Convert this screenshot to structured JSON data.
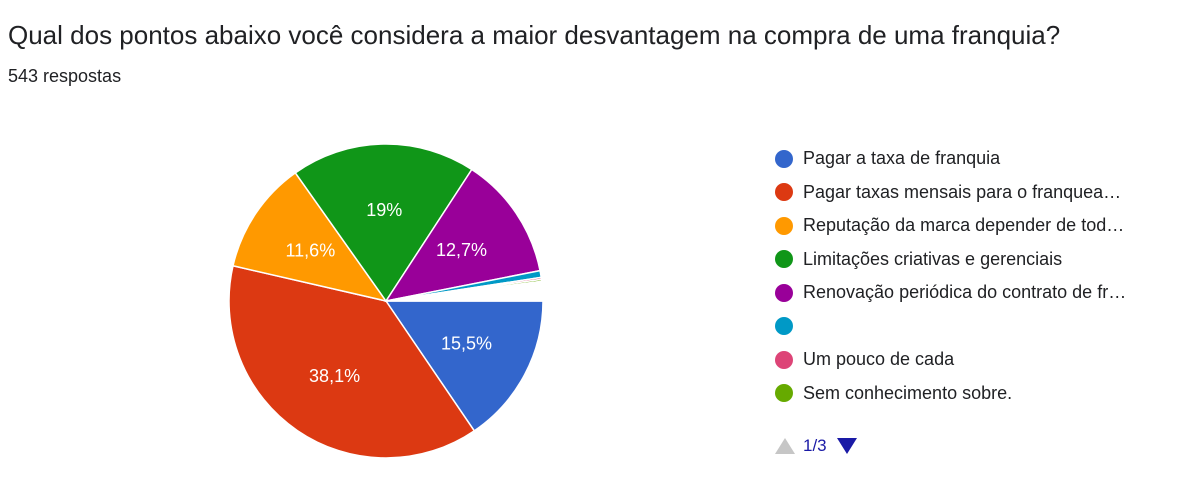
{
  "header": {
    "title": "Qual dos pontos abaixo você considera a maior desvantagem na compra de uma franquia?",
    "responses": "543 respostas"
  },
  "chart_data": {
    "type": "pie",
    "start": "3 o'clock, clockwise",
    "slices": [
      {
        "label": "Pagar a taxa de franquia",
        "value": 15.5,
        "display": "15,5%",
        "color": "#3366cc"
      },
      {
        "label": "Pagar taxas mensais para o franquea…",
        "value": 38.1,
        "display": "38,1%",
        "color": "#dc3912"
      },
      {
        "label": "Reputação da marca depender de tod…",
        "value": 11.6,
        "display": "11,6%",
        "color": "#ff9900"
      },
      {
        "label": "Limitações criativas e gerenciais",
        "value": 19.0,
        "display": "19%",
        "color": "#109618"
      },
      {
        "label": "Renovação periódica do contrato de fr…",
        "value": 12.7,
        "display": "12,7%",
        "color": "#990099"
      },
      {
        "label": "",
        "value": 0.7,
        "display": "",
        "color": "#0099c6"
      },
      {
        "label": "Um pouco de cada",
        "value": 0.2,
        "display": "",
        "color": "#dd4477"
      },
      {
        "label": "Sem conhecimento sobre.",
        "value": 0.2,
        "display": "",
        "color": "#66aa00"
      },
      {
        "label": "",
        "value": 2.0,
        "display": "",
        "color": "#ffffff",
        "hidden_in_legend": true
      }
    ]
  },
  "legend_items": [
    {
      "label": "Pagar a taxa de franquia",
      "color": "#3366cc"
    },
    {
      "label": "Pagar taxas mensais para o franquea…",
      "color": "#dc3912"
    },
    {
      "label": "Reputação da marca depender de tod…",
      "color": "#ff9900"
    },
    {
      "label": "Limitações criativas e gerenciais",
      "color": "#109618"
    },
    {
      "label": "Renovação periódica do contrato de fr…",
      "color": "#990099"
    },
    {
      "label": "",
      "color": "#0099c6"
    },
    {
      "label": "Um pouco de cada",
      "color": "#dd4477"
    },
    {
      "label": "Sem conhecimento sobre.",
      "color": "#66aa00"
    }
  ],
  "pager": {
    "text": "1/3",
    "prev_icon": "triangle-up-icon",
    "next_icon": "triangle-down-icon"
  }
}
